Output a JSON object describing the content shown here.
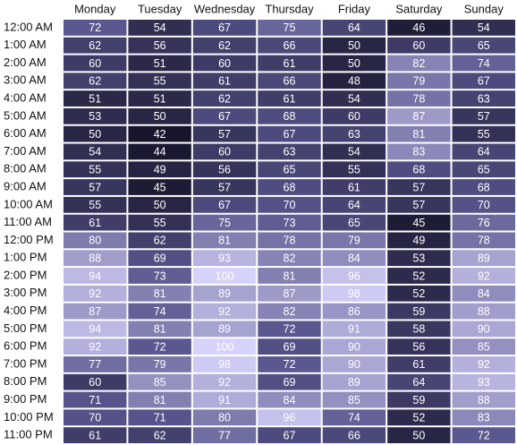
{
  "chart_data": {
    "type": "heatmap",
    "x_categories": [
      "Monday",
      "Tuesday",
      "Wednesday",
      "Thursday",
      "Friday",
      "Saturday",
      "Sunday"
    ],
    "y_categories": [
      "12:00 AM",
      "1:00 AM",
      "2:00 AM",
      "3:00 AM",
      "4:00 AM",
      "5:00 AM",
      "6:00 AM",
      "7:00 AM",
      "8:00 AM",
      "9:00 AM",
      "10:00 AM",
      "11:00 AM",
      "12:00 PM",
      "1:00 PM",
      "2:00 PM",
      "3:00 PM",
      "4:00 PM",
      "5:00 PM",
      "6:00 PM",
      "7:00 PM",
      "8:00 PM",
      "9:00 PM",
      "10:00 PM",
      "11:00 PM"
    ],
    "values": [
      [
        72,
        54,
        67,
        75,
        64,
        46,
        54
      ],
      [
        62,
        56,
        62,
        66,
        50,
        60,
        65
      ],
      [
        60,
        51,
        60,
        61,
        50,
        82,
        74
      ],
      [
        62,
        55,
        61,
        66,
        48,
        79,
        67
      ],
      [
        51,
        51,
        62,
        61,
        54,
        78,
        63
      ],
      [
        53,
        50,
        67,
        68,
        60,
        87,
        57
      ],
      [
        50,
        42,
        57,
        67,
        63,
        81,
        55
      ],
      [
        54,
        44,
        60,
        63,
        54,
        83,
        64
      ],
      [
        55,
        49,
        56,
        65,
        55,
        68,
        65
      ],
      [
        57,
        45,
        57,
        68,
        61,
        57,
        68
      ],
      [
        55,
        50,
        67,
        70,
        64,
        57,
        70
      ],
      [
        61,
        55,
        75,
        73,
        65,
        45,
        76
      ],
      [
        80,
        62,
        81,
        78,
        79,
        49,
        78
      ],
      [
        88,
        69,
        93,
        82,
        84,
        53,
        89
      ],
      [
        94,
        73,
        100,
        81,
        96,
        52,
        92
      ],
      [
        92,
        81,
        89,
        87,
        98,
        52,
        84
      ],
      [
        87,
        74,
        92,
        82,
        86,
        59,
        88
      ],
      [
        94,
        81,
        89,
        72,
        91,
        58,
        90
      ],
      [
        92,
        72,
        100,
        69,
        90,
        56,
        85
      ],
      [
        77,
        79,
        98,
        72,
        90,
        61,
        92
      ],
      [
        60,
        85,
        92,
        69,
        89,
        64,
        93
      ],
      [
        71,
        81,
        91,
        84,
        85,
        59,
        88
      ],
      [
        70,
        71,
        80,
        96,
        74,
        52,
        83
      ],
      [
        61,
        62,
        77,
        67,
        66,
        50,
        72
      ]
    ],
    "colormap": [
      "#16152b",
      "#56548a",
      "#d6d3fb"
    ]
  }
}
